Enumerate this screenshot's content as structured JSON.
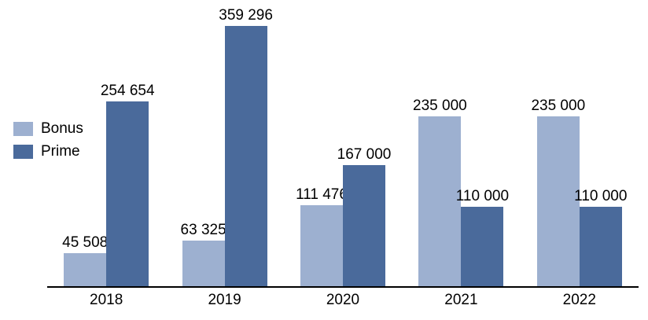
{
  "chart_data": {
    "type": "bar",
    "title": "",
    "xlabel": "",
    "ylabel": "",
    "categories": [
      "2018",
      "2019",
      "2020",
      "2021",
      "2022"
    ],
    "series": [
      {
        "name": "Bonus",
        "color": "#9DB0D0",
        "values": [
          45508,
          63325,
          111476,
          235000,
          235000
        ],
        "labels": [
          "45 508",
          "63 325",
          "111 476",
          "235 000",
          "235 000"
        ]
      },
      {
        "name": "Prime",
        "color": "#4A6A9B",
        "values": [
          254654,
          359296,
          167000,
          110000,
          110000
        ],
        "labels": [
          "254 654",
          "359 296",
          "167 000",
          "110 000",
          "110 000"
        ]
      }
    ],
    "ylim": [
      0,
      370000
    ],
    "grid": false,
    "y_axis_visible": false,
    "legend_position": "middle-left",
    "axis_color": "#000000",
    "text_color": "#000000",
    "background_color": "#ffffff"
  }
}
